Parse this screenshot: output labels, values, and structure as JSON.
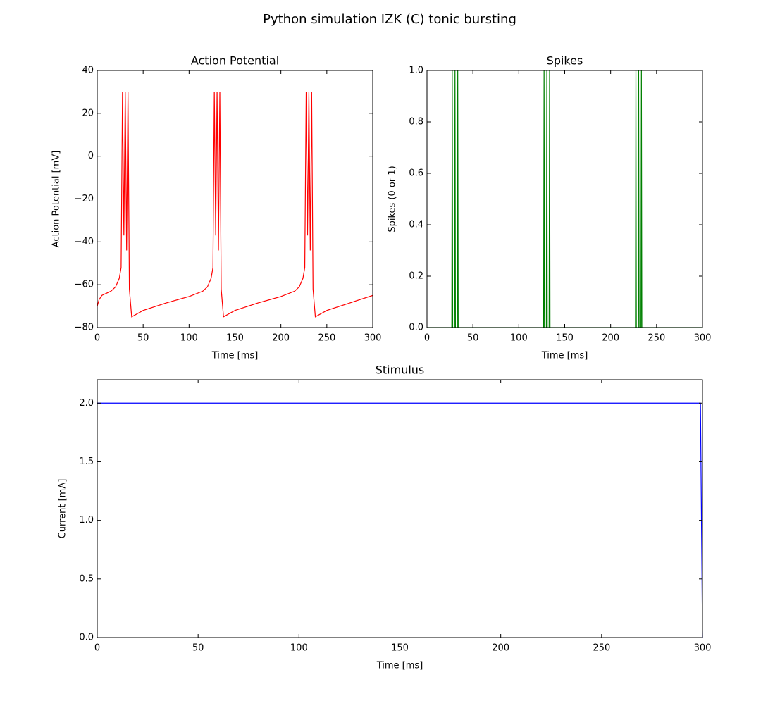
{
  "title": "Python simulation IZK (C) tonic bursting",
  "chart_data": [
    {
      "type": "line",
      "title": "Action Potential",
      "xlabel": "Time [ms]",
      "ylabel": "Action Potential [mV]",
      "x": [
        0,
        2,
        5,
        10,
        15,
        20,
        24,
        26,
        27.5,
        29,
        30.5,
        32,
        33.5,
        35,
        37.5,
        50,
        75,
        100,
        115,
        120,
        124,
        126,
        127.5,
        129,
        130.5,
        132,
        133.5,
        135,
        137.5,
        150,
        175,
        200,
        215,
        220,
        224,
        226,
        227.5,
        229,
        230.5,
        232,
        233.5,
        235,
        237.5,
        250,
        275,
        300
      ],
      "series": [
        {
          "color": "#ff0000",
          "values": [
            -70,
            -67,
            -65,
            -64,
            -63,
            -61,
            -57,
            -52,
            30,
            -37,
            30,
            -44,
            30,
            -62,
            -75,
            -72,
            -68.5,
            -65.5,
            -63,
            -61,
            -57,
            -52,
            30,
            -37,
            30,
            -44,
            30,
            -62,
            -75,
            -72,
            -68.5,
            -65.5,
            -63,
            -61,
            -57,
            -52,
            30,
            -37,
            30,
            -44,
            30,
            -62,
            -75,
            -72,
            -68.5,
            -65
          ]
        }
      ],
      "xlim": [
        0,
        300
      ],
      "ylim": [
        -80,
        40
      ],
      "xticks": [
        0,
        50,
        100,
        150,
        200,
        250,
        300
      ],
      "yticks": [
        {
          "value": -80,
          "label": "−80"
        },
        {
          "value": -60,
          "label": "−60"
        },
        {
          "value": -40,
          "label": "−40"
        },
        {
          "value": -20,
          "label": "−20"
        },
        0,
        20,
        40
      ]
    },
    {
      "type": "line",
      "title": "Spikes",
      "xlabel": "Time [ms]",
      "ylabel": "Spikes (0 or 1)",
      "x": [
        0,
        27,
        27.5,
        28,
        30,
        30.5,
        31,
        33,
        33.5,
        34,
        127,
        127.5,
        128,
        130,
        130.5,
        131,
        133,
        133.5,
        134,
        227,
        227.5,
        228,
        230,
        230.5,
        231,
        233,
        233.5,
        234,
        300
      ],
      "series": [
        {
          "color": "#008000",
          "values": [
            0,
            0,
            1,
            0,
            0,
            1,
            0,
            0,
            1,
            0,
            0,
            1,
            0,
            0,
            1,
            0,
            0,
            1,
            0,
            0,
            1,
            0,
            0,
            1,
            0,
            0,
            1,
            0,
            0
          ]
        }
      ],
      "xlim": [
        0,
        300
      ],
      "ylim": [
        0,
        1
      ],
      "xticks": [
        0,
        50,
        100,
        150,
        200,
        250,
        300
      ],
      "yticks": [
        {
          "value": 0,
          "label": "0.0"
        },
        0.2,
        0.4,
        0.6,
        0.8,
        {
          "value": 1,
          "label": "1.0"
        }
      ]
    },
    {
      "type": "line",
      "title": "Stimulus",
      "xlabel": "Time [ms]",
      "ylabel": "Current [mA]",
      "x": [
        0,
        299,
        300
      ],
      "series": [
        {
          "color": "#0000ff",
          "values": [
            2,
            2,
            0
          ]
        }
      ],
      "xlim": [
        0,
        300
      ],
      "ylim": [
        0,
        2.2
      ],
      "xticks": [
        0,
        50,
        100,
        150,
        200,
        250,
        300
      ],
      "yticks": [
        {
          "value": 0,
          "label": "0.0"
        },
        0.5,
        {
          "value": 1,
          "label": "1.0"
        },
        1.5,
        {
          "value": 2,
          "label": "2.0"
        }
      ]
    }
  ]
}
